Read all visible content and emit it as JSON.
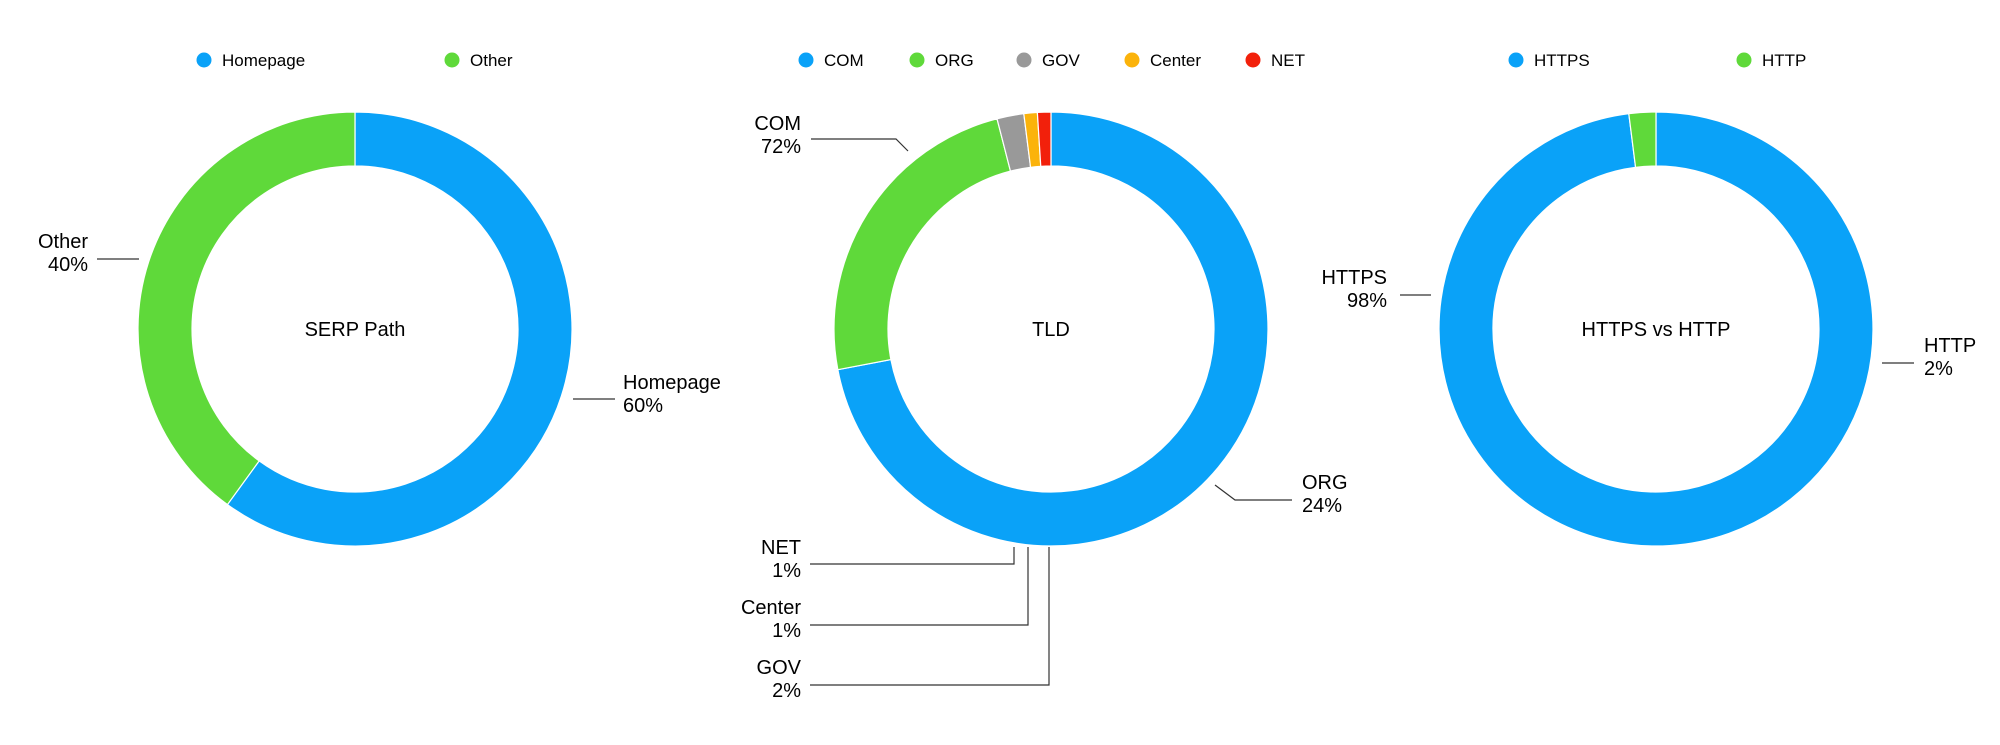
{
  "chart_data": [
    {
      "type": "pie",
      "title": "SERP Path",
      "legend_placement": "top",
      "slices": [
        {
          "label": "Homepage",
          "value": 60,
          "display": "60%",
          "color": "#0aa2f8"
        },
        {
          "label": "Other",
          "value": 40,
          "display": "40%",
          "color": "#5fd93a"
        }
      ]
    },
    {
      "type": "pie",
      "title": "TLD",
      "legend_placement": "top",
      "slices": [
        {
          "label": "COM",
          "value": 72,
          "display": "72%",
          "color": "#0aa2f8"
        },
        {
          "label": "ORG",
          "value": 24,
          "display": "24%",
          "color": "#5fd93a"
        },
        {
          "label": "GOV",
          "value": 2,
          "display": "2%",
          "color": "#999999"
        },
        {
          "label": "Center",
          "value": 1,
          "display": "1%",
          "color": "#fbb30b"
        },
        {
          "label": "NET",
          "value": 1,
          "display": "1%",
          "color": "#f2200b"
        }
      ]
    },
    {
      "type": "pie",
      "title": "HTTPS vs HTTP",
      "legend_placement": "top",
      "slices": [
        {
          "label": "HTTPS",
          "value": 98,
          "display": "98%",
          "color": "#0aa2f8"
        },
        {
          "label": "HTTP",
          "value": 2,
          "display": "2%",
          "color": "#5fd93a"
        }
      ]
    }
  ]
}
